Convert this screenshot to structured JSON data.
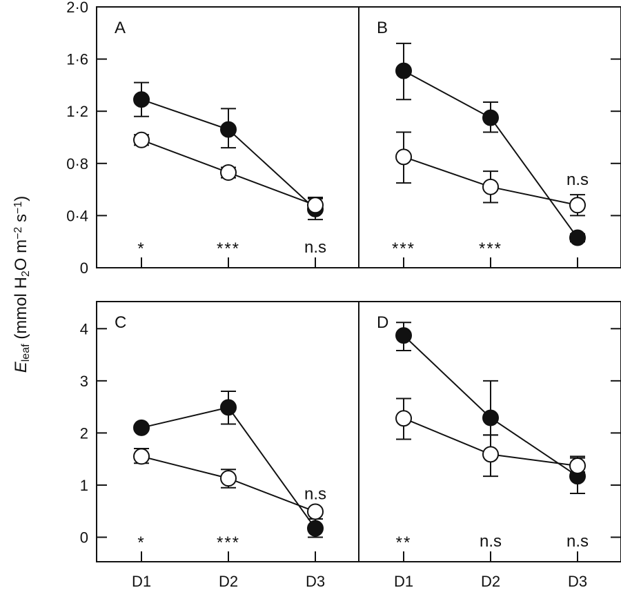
{
  "chart_data": {
    "type": "line",
    "ylabel_parts": [
      {
        "t": "E",
        "style": "italic"
      },
      {
        "t": "leaf",
        "style": "sub"
      },
      {
        "t": " (mmol H",
        "style": "normal"
      },
      {
        "t": "2",
        "style": "sub"
      },
      {
        "t": "O m",
        "style": "normal"
      },
      {
        "t": "−2",
        "style": "sup"
      },
      {
        "t": " s",
        "style": "normal"
      },
      {
        "t": "−1",
        "style": "sup"
      },
      {
        "t": ")",
        "style": "normal"
      }
    ],
    "categories": [
      "D1",
      "D2",
      "D3"
    ],
    "marker_colors": {
      "filled": "#111111",
      "open": "#ffffff"
    },
    "panels": [
      {
        "label": "A",
        "row": 0,
        "col": 0,
        "ylim": [
          0,
          2.0
        ],
        "yticks": [
          0,
          0.4,
          0.8,
          1.2,
          1.6,
          2.0
        ],
        "ytick_labels": [
          "0",
          "0·4",
          "0·8",
          "1·2",
          "1·6",
          "2·0"
        ],
        "annotations": [
          "*",
          "***",
          "n.s"
        ],
        "series": [
          {
            "marker": "filled",
            "values": [
              1.29,
              1.06,
              0.45
            ],
            "err_hi": [
              1.42,
              1.22,
              0.54
            ],
            "err_lo": [
              1.16,
              0.92,
              0.37
            ]
          },
          {
            "marker": "open",
            "values": [
              0.98,
              0.73,
              0.48
            ],
            "err_hi": [
              1.02,
              0.77,
              0.53
            ],
            "err_lo": [
              0.94,
              0.69,
              0.43
            ]
          }
        ]
      },
      {
        "label": "B",
        "row": 0,
        "col": 1,
        "ylim": [
          0,
          2.0
        ],
        "yticks": [
          0,
          0.4,
          0.8,
          1.2,
          1.6,
          2.0
        ],
        "ytick_labels": [],
        "annotations": [
          "***",
          "***",
          "n.s"
        ],
        "annotation_above_d3": true,
        "series": [
          {
            "marker": "filled",
            "values": [
              1.51,
              1.15,
              0.23
            ],
            "err_hi": [
              1.72,
              1.27,
              0.26
            ],
            "err_lo": [
              1.29,
              1.04,
              0.2
            ]
          },
          {
            "marker": "open",
            "values": [
              0.85,
              0.62,
              0.48
            ],
            "err_hi": [
              1.04,
              0.74,
              0.56
            ],
            "err_lo": [
              0.65,
              0.5,
              0.4
            ]
          }
        ]
      },
      {
        "label": "C",
        "row": 1,
        "col": 0,
        "ylim": [
          -0.47,
          4.52
        ],
        "yticks": [
          0,
          1,
          2,
          3,
          4
        ],
        "ytick_labels": [
          "0",
          "1",
          "2",
          "3",
          "4"
        ],
        "annotations": [
          "*",
          "***",
          "n.s"
        ],
        "annotation_above_d3": true,
        "series": [
          {
            "marker": "filled",
            "values": [
              2.1,
              2.49,
              0.17
            ],
            "err_hi": [
              2.15,
              2.8,
              0.35
            ],
            "err_lo": [
              2.05,
              2.17,
              0.0
            ]
          },
          {
            "marker": "open",
            "values": [
              1.55,
              1.13,
              0.49
            ],
            "err_hi": [
              1.7,
              1.3,
              0.54
            ],
            "err_lo": [
              1.42,
              0.95,
              0.44
            ]
          }
        ]
      },
      {
        "label": "D",
        "row": 1,
        "col": 1,
        "ylim": [
          -0.47,
          4.52
        ],
        "yticks": [
          0,
          1,
          2,
          3,
          4
        ],
        "ytick_labels": [],
        "annotations": [
          "**",
          "n.s",
          "n.s"
        ],
        "series": [
          {
            "marker": "filled",
            "values": [
              3.87,
              2.29,
              1.17
            ],
            "err_hi": [
              4.12,
              3.0,
              1.55
            ],
            "err_lo": [
              3.58,
              1.96,
              0.84
            ]
          },
          {
            "marker": "open",
            "values": [
              2.28,
              1.59,
              1.37
            ],
            "err_hi": [
              2.66,
              1.96,
              1.52
            ],
            "err_lo": [
              1.88,
              1.17,
              1.25
            ]
          }
        ]
      }
    ]
  }
}
